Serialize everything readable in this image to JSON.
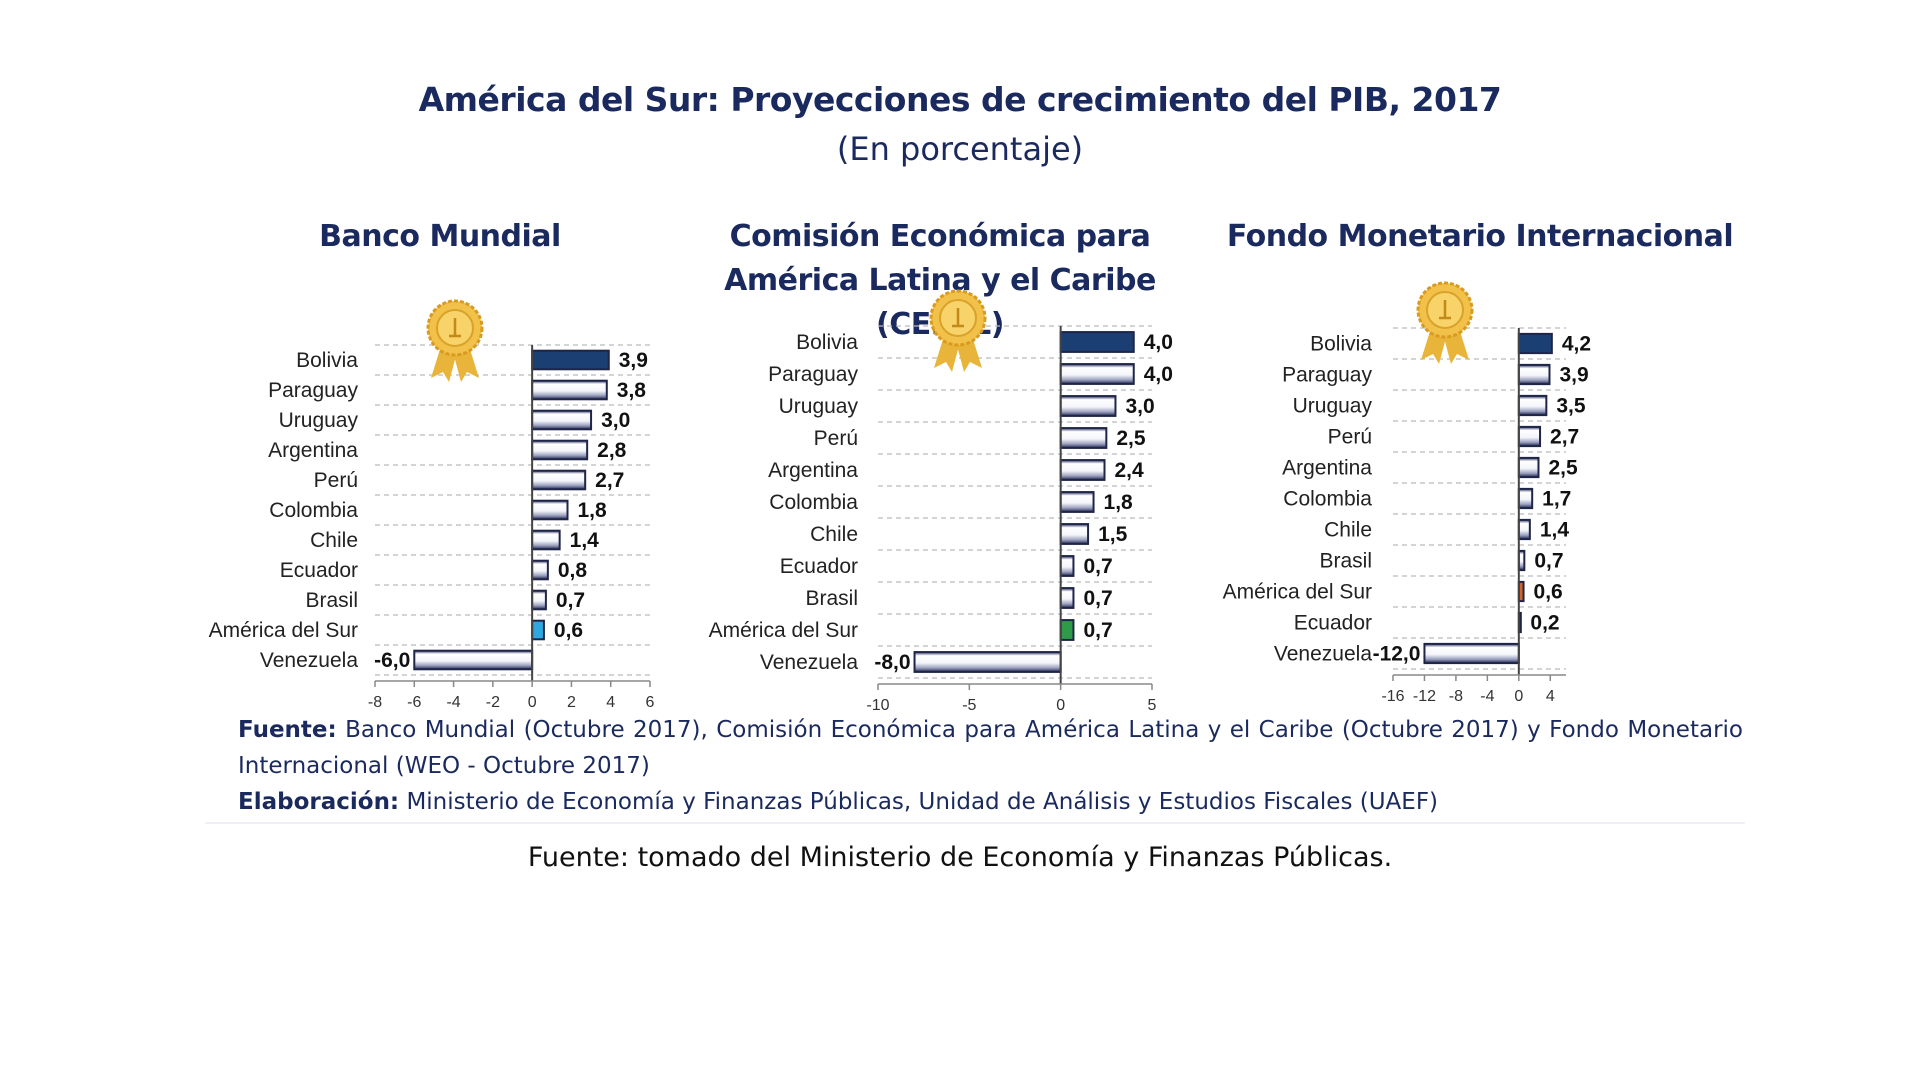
{
  "header": {
    "title": "América del Sur: Proyecciones de crecimiento del PIB, 2017",
    "subtitle": "(En porcentaje)"
  },
  "colors": {
    "title_text": "#1b2a5e",
    "bolivia_bar": "#1c3f73",
    "bar_outline": "#1f2548",
    "regional_bar_bm": "#2fa8e0",
    "regional_bar_cepal": "#2e9a4a",
    "regional_bar_fmi": "#d2642a"
  },
  "icons": {
    "award": "gold-medal-ribbon-icon"
  },
  "chart_data": [
    {
      "type": "bar",
      "orientation": "horizontal",
      "title": "Banco Mundial",
      "categories": [
        "Bolivia",
        "Paraguay",
        "Uruguay",
        "Argentina",
        "Perú",
        "Colombia",
        "Chile",
        "Ecuador",
        "Brasil",
        "América del Sur",
        "Venezuela"
      ],
      "values": [
        3.9,
        3.8,
        3.0,
        2.8,
        2.7,
        1.8,
        1.4,
        0.8,
        0.7,
        0.6,
        -6.0
      ],
      "value_labels": [
        "3,9",
        "3,8",
        "3,0",
        "2,8",
        "2,7",
        "1,8",
        "1,4",
        "0,8",
        "0,7",
        "0,6",
        "-6,0"
      ],
      "highlight": {
        "Bolivia": "bolivia",
        "América del Sur": "regional"
      },
      "xlim": [
        -8,
        6
      ],
      "xticks": [
        -8,
        -6,
        -4,
        -2,
        0,
        2,
        4,
        6
      ],
      "xtick_labels": [
        "-8",
        "-6",
        "-4",
        "-2",
        "0",
        "2",
        "4",
        "6"
      ],
      "grid": "horizontal dashed",
      "xlabel": "",
      "ylabel": ""
    },
    {
      "type": "bar",
      "orientation": "horizontal",
      "title": "Comisión Económica para América Latina y el Caribe (CEPAL)",
      "title_lines": [
        "Comisión Económica para",
        "América Latina y el Caribe (CEPAL)"
      ],
      "categories": [
        "Bolivia",
        "Paraguay",
        "Uruguay",
        "Perú",
        "Argentina",
        "Colombia",
        "Chile",
        "Ecuador",
        "Brasil",
        "América del Sur",
        "Venezuela"
      ],
      "values": [
        4.0,
        4.0,
        3.0,
        2.5,
        2.4,
        1.8,
        1.5,
        0.7,
        0.7,
        0.7,
        -8.0
      ],
      "value_labels": [
        "4,0",
        "4,0",
        "3,0",
        "2,5",
        "2,4",
        "1,8",
        "1,5",
        "0,7",
        "0,7",
        "0,7",
        "-8,0"
      ],
      "highlight": {
        "Bolivia": "bolivia",
        "América del Sur": "regional"
      },
      "xlim": [
        -10,
        5
      ],
      "xticks": [
        -10,
        -5,
        0,
        5
      ],
      "xtick_labels": [
        "-10",
        "-5",
        "0",
        "5"
      ],
      "grid": "horizontal dashed",
      "xlabel": "",
      "ylabel": ""
    },
    {
      "type": "bar",
      "orientation": "horizontal",
      "title": "Fondo Monetario Internacional",
      "categories": [
        "Bolivia",
        "Paraguay",
        "Uruguay",
        "Perú",
        "Argentina",
        "Colombia",
        "Chile",
        "Brasil",
        "América del Sur",
        "Ecuador",
        "Venezuela"
      ],
      "values": [
        4.2,
        3.9,
        3.5,
        2.7,
        2.5,
        1.7,
        1.4,
        0.7,
        0.6,
        0.2,
        -12.0
      ],
      "value_labels": [
        "4,2",
        "3,9",
        "3,5",
        "2,7",
        "2,5",
        "1,7",
        "1,4",
        "0,7",
        "0,6",
        "0,2",
        "-12,0"
      ],
      "highlight": {
        "Bolivia": "bolivia",
        "América del Sur": "regional"
      },
      "xlim": [
        -16,
        6
      ],
      "xticks": [
        -16,
        -12,
        -8,
        -4,
        0,
        4
      ],
      "xtick_labels": [
        "-16",
        "-12",
        "-8",
        "-4",
        "0",
        "4"
      ],
      "grid": "horizontal dashed",
      "xlabel": "",
      "ylabel": ""
    }
  ],
  "footer": {
    "source_label": "Fuente:",
    "source_text": " Banco Mundial (Octubre 2017), Comisión Económica para América Latina y el Caribe (Octubre 2017) y Fondo Monetario Internacional (WEO - Octubre 2017)",
    "elaboration_label": "Elaboración:",
    "elaboration_text": " Ministerio de Economía y Finanzas Públicas, Unidad de Análisis y Estudios Fiscales (UAEF)"
  },
  "caption": "Fuente: tomado del Ministerio de Economía y Finanzas Públicas."
}
